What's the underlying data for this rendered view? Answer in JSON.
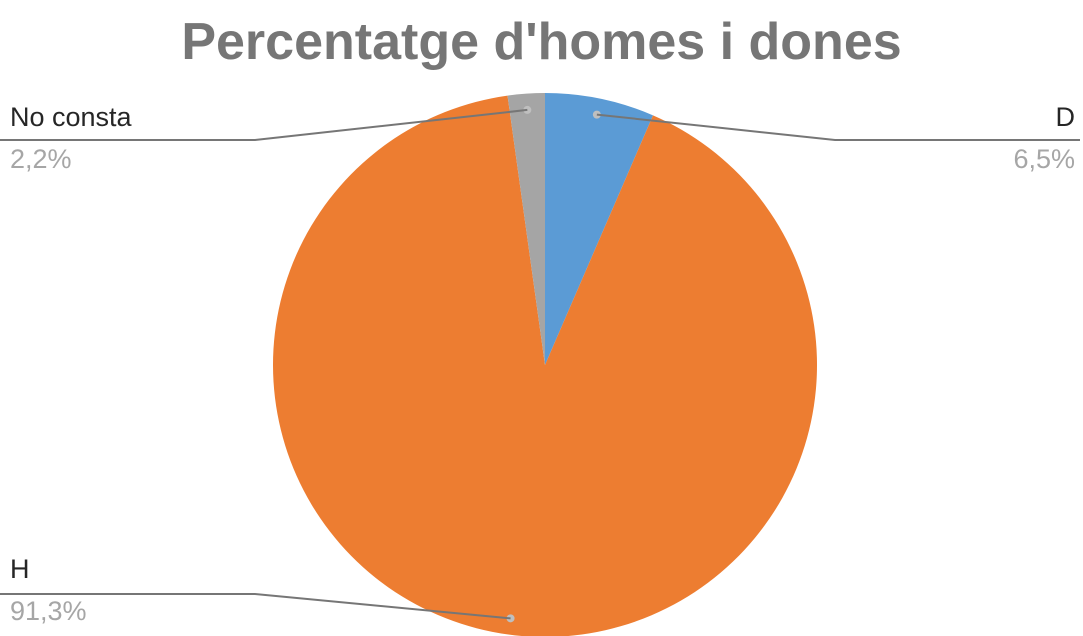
{
  "chart_data": {
    "type": "pie",
    "title": "Percentatge d'homes i dones",
    "categories": [
      "D",
      "H",
      "No consta"
    ],
    "values": [
      6.5,
      91.3,
      2.2
    ],
    "value_labels": [
      "6,5%",
      "91,3%",
      "2,2%"
    ],
    "colors": [
      "#5b9bd5",
      "#ed7d31",
      "#a5a5a5"
    ],
    "start_angle_deg": 0,
    "direction": "clockwise",
    "legend": "none",
    "data_labels": "outside-with-leader-lines"
  }
}
